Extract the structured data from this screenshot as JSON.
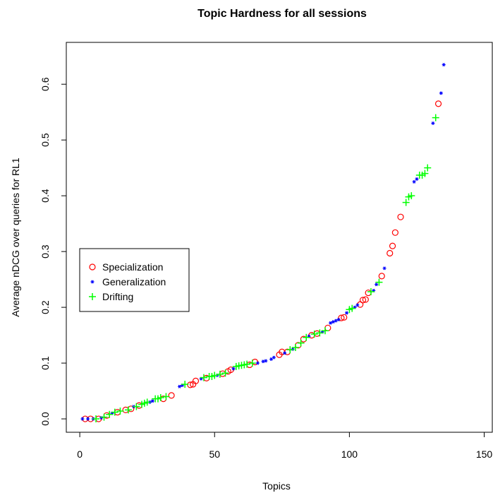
{
  "chart_data": {
    "type": "scatter",
    "title": "Topic Hardness for all sessions",
    "x_label": "Topics",
    "y_label": "Average nDCG over queries for RL1",
    "xlim": [
      -5,
      153
    ],
    "ylim": [
      -0.024,
      0.675
    ],
    "xticks": [
      0,
      50,
      100,
      150
    ],
    "yticks": [
      {
        "value": 0,
        "label": "0.0"
      },
      0.1,
      0.2,
      0.3,
      0.4,
      0.5,
      0.6
    ],
    "grid": false,
    "legend": "left",
    "series": [
      {
        "name": "Specialization",
        "color": "#ff0000",
        "marker": "circle",
        "x": [
          2,
          4,
          7,
          10,
          14,
          17,
          19,
          22,
          31,
          34,
          41,
          42,
          43,
          47,
          53,
          55,
          56,
          63,
          65,
          74,
          75,
          77,
          81,
          83,
          86,
          88,
          92,
          97,
          98,
          104,
          105,
          106,
          107,
          112,
          115,
          116,
          117,
          119,
          133
        ],
        "values": [
          0,
          0,
          0,
          0.006,
          0.012,
          0.016,
          0.018,
          0.024,
          0.036,
          0.042,
          0.061,
          0.062,
          0.068,
          0.073,
          0.081,
          0.085,
          0.088,
          0.097,
          0.102,
          0.115,
          0.12,
          0.12,
          0.132,
          0.143,
          0.15,
          0.153,
          0.163,
          0.181,
          0.182,
          0.205,
          0.213,
          0.214,
          0.226,
          0.256,
          0.297,
          0.31,
          0.334,
          0.362,
          0.565
        ]
      },
      {
        "name": "Generalization",
        "color": "#0000ff",
        "marker": "star",
        "x": [
          1,
          3,
          5,
          8,
          12,
          20,
          26,
          27,
          37,
          38,
          45,
          51,
          57,
          66,
          68,
          69,
          71,
          72,
          76,
          79,
          85,
          90,
          93,
          94,
          95,
          96,
          99,
          102,
          103,
          109,
          110,
          113,
          124,
          125,
          131,
          134,
          135
        ],
        "values": [
          0,
          0,
          0,
          0.002,
          0.01,
          0.022,
          0.03,
          0.032,
          0.058,
          0.06,
          0.072,
          0.078,
          0.09,
          0.1,
          0.103,
          0.104,
          0.107,
          0.11,
          0.118,
          0.125,
          0.148,
          0.156,
          0.172,
          0.174,
          0.176,
          0.178,
          0.19,
          0.2,
          0.204,
          0.23,
          0.241,
          0.27,
          0.425,
          0.43,
          0.53,
          0.584,
          0.635
        ]
      },
      {
        "name": "Drifting",
        "color": "#00ff00",
        "marker": "plus",
        "x": [
          6,
          9,
          11,
          13,
          15,
          18,
          21,
          23,
          24,
          25,
          28,
          29,
          30,
          32,
          39,
          46,
          48,
          49,
          50,
          52,
          54,
          58,
          59,
          60,
          61,
          62,
          64,
          78,
          80,
          82,
          84,
          87,
          89,
          91,
          100,
          101,
          108,
          111,
          121,
          122,
          123,
          126,
          127,
          128,
          129,
          132
        ],
        "values": [
          0,
          0.003,
          0.008,
          0.012,
          0.014,
          0.016,
          0.022,
          0.026,
          0.028,
          0.03,
          0.036,
          0.036,
          0.038,
          0.04,
          0.062,
          0.074,
          0.076,
          0.076,
          0.078,
          0.08,
          0.082,
          0.094,
          0.095,
          0.096,
          0.097,
          0.098,
          0.1,
          0.124,
          0.128,
          0.136,
          0.146,
          0.152,
          0.154,
          0.158,
          0.196,
          0.198,
          0.228,
          0.245,
          0.388,
          0.398,
          0.4,
          0.437,
          0.437,
          0.44,
          0.45,
          0.54
        ]
      }
    ]
  }
}
